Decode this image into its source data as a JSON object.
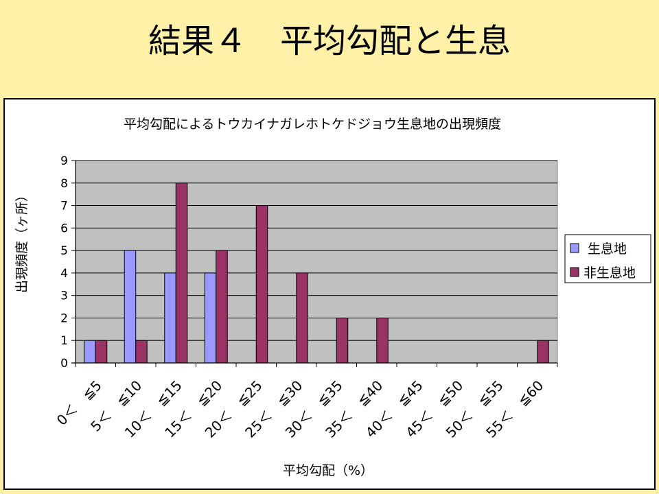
{
  "slide": {
    "title": "結果４　平均勾配と生息"
  },
  "colors": {
    "background": "#FFF1A8",
    "plot_area": "#C0C0C0",
    "gridline": "#000000"
  },
  "chart_data": {
    "type": "bar",
    "title": "平均勾配によるトウカイナガレホトケドジョウ生息地の出現頻度",
    "xlabel": "平均勾配（%）",
    "ylabel": "出現頻度（ヶ所）",
    "ylim": [
      0,
      9
    ],
    "yticks": [
      0,
      1,
      2,
      3,
      4,
      5,
      6,
      7,
      8,
      9
    ],
    "grid": true,
    "legend": "right",
    "categories": [
      "0＜　≦5",
      "5＜　≦10",
      "10＜　≦15",
      "15＜　≦20",
      "20＜　≦25",
      "25＜　≦30",
      "30＜　≦35",
      "35＜　≦40",
      "40＜　≦45",
      "45＜　≦50",
      "50＜　≦55",
      "55＜　≦60"
    ],
    "series": [
      {
        "name": "生息地",
        "color": "#9999FF",
        "values": [
          1,
          5,
          4,
          4,
          0,
          0,
          0,
          0,
          0,
          0,
          0,
          0
        ]
      },
      {
        "name": "非生息地",
        "color": "#993366",
        "values": [
          1,
          1,
          8,
          5,
          7,
          4,
          2,
          2,
          0,
          0,
          0,
          1
        ]
      }
    ]
  }
}
